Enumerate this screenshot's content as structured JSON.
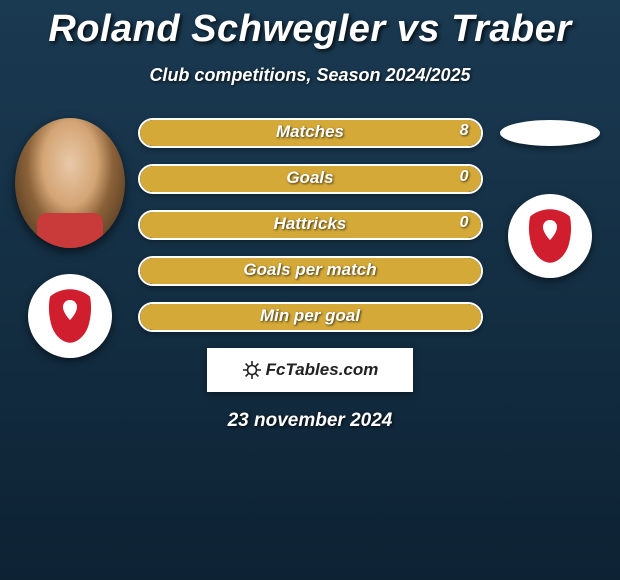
{
  "title": "Roland Schwegler vs Traber",
  "subtitle": "Club competitions, Season 2024/2025",
  "date": "23 november 2024",
  "attribution": "FcTables.com",
  "colors": {
    "bar_fill": "#d4a938",
    "bar_border": "#ffffff",
    "bg_top": "#1a3a52",
    "bg_bottom": "#0d2233",
    "text": "#ffffff",
    "shield_red": "#d01e2e",
    "shield_white": "#ffffff"
  },
  "stats": [
    {
      "label": "Matches",
      "left_value": "",
      "right_value": "8",
      "fill_left_pct": 0,
      "fill_right_pct": 100
    },
    {
      "label": "Goals",
      "left_value": "",
      "right_value": "0",
      "fill_left_pct": 0,
      "fill_right_pct": 100
    },
    {
      "label": "Hattricks",
      "left_value": "",
      "right_value": "0",
      "fill_left_pct": 0,
      "fill_right_pct": 100
    },
    {
      "label": "Goals per match",
      "left_value": "",
      "right_value": "",
      "fill_left_pct": 100,
      "fill_right_pct": 0
    },
    {
      "label": "Min per goal",
      "left_value": "",
      "right_value": "",
      "fill_left_pct": 100,
      "fill_right_pct": 0
    }
  ],
  "players": {
    "left": {
      "name": "Roland Schwegler",
      "has_photo": true
    },
    "right": {
      "name": "Traber",
      "has_photo": false
    }
  }
}
